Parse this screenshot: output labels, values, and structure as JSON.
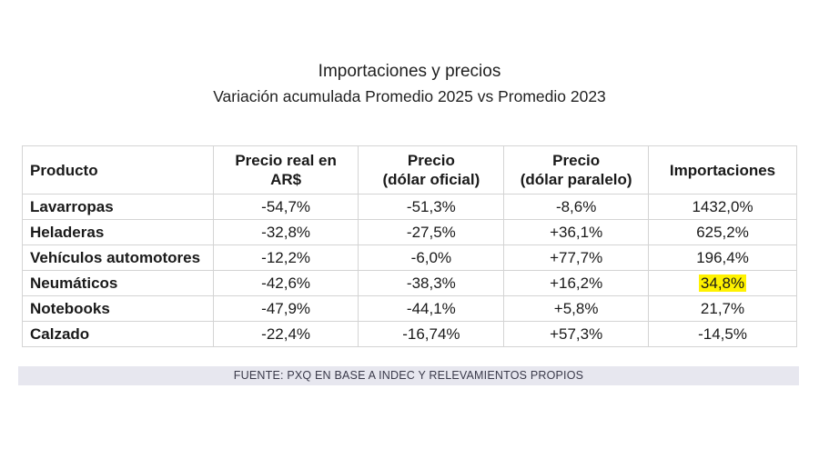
{
  "title": "Importaciones y precios",
  "subtitle": "Variación acumulada Promedio 2025 vs Promedio 2023",
  "table": {
    "headers": [
      {
        "line1": "Producto",
        "line2": ""
      },
      {
        "line1": "Precio real en",
        "line2": "AR$"
      },
      {
        "line1": "Precio",
        "line2": "(dólar oficial)"
      },
      {
        "line1": "Precio",
        "line2": "(dólar paralelo)"
      },
      {
        "line1": "Importaciones",
        "line2": ""
      }
    ],
    "rows": [
      {
        "producto": "Lavarropas",
        "precio_real": "-54,7%",
        "dolar_oficial": "-51,3%",
        "dolar_paralelo": "-8,6%",
        "importaciones": "1432,0%"
      },
      {
        "producto": "Heladeras",
        "precio_real": "-32,8%",
        "dolar_oficial": "-27,5%",
        "dolar_paralelo": "+36,1%",
        "importaciones": "625,2%"
      },
      {
        "producto": "Vehículos automotores",
        "precio_real": "-12,2%",
        "dolar_oficial": "-6,0%",
        "dolar_paralelo": "+77,7%",
        "importaciones": "196,4%"
      },
      {
        "producto": "Neumáticos",
        "precio_real": "-42,6%",
        "dolar_oficial": "-38,3%",
        "dolar_paralelo": "+16,2%",
        "importaciones": "34,8%"
      },
      {
        "producto": "Notebooks",
        "precio_real": "-47,9%",
        "dolar_oficial": "-44,1%",
        "dolar_paralelo": "+5,8%",
        "importaciones": "21,7%"
      },
      {
        "producto": "Calzado",
        "precio_real": "-22,4%",
        "dolar_oficial": "-16,74%",
        "dolar_paralelo": "+57,3%",
        "importaciones": "-14,5%"
      }
    ],
    "highlight": {
      "row": 3,
      "column": "importaciones",
      "color": "#fff200"
    }
  },
  "source": "FUENTE: PXQ EN BASE A INDEC Y RELEVAMIENTOS PROPIOS",
  "colors": {
    "border": "#d4d4d4",
    "source_bg": "#e7e7ef",
    "highlight": "#fff200"
  }
}
